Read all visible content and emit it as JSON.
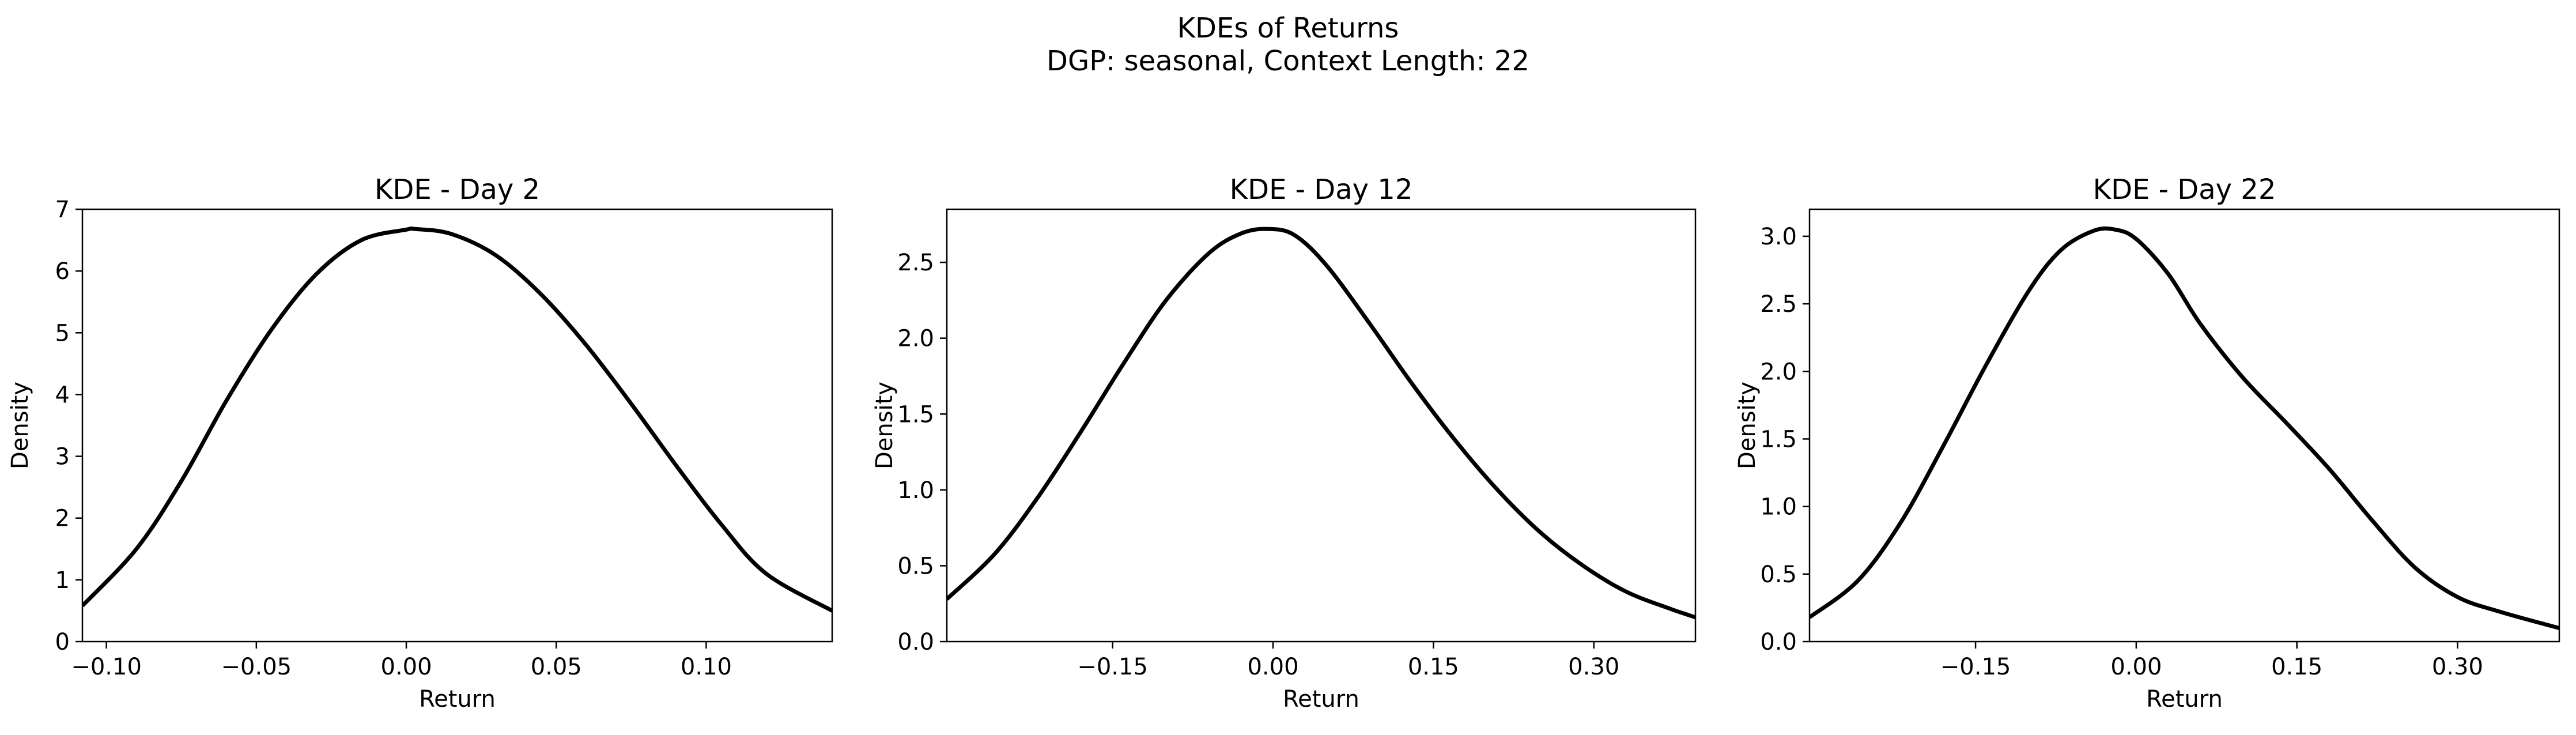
{
  "figure": {
    "title_line1": "KDEs of Returns",
    "title_line2": "DGP: seasonal, Context Length: 22"
  },
  "colors": {
    "line": "#000000",
    "axes": "#000000",
    "background": "#ffffff"
  },
  "chart_data": [
    {
      "type": "line",
      "title": "KDE - Day 2",
      "xlabel": "Return",
      "ylabel": "Density",
      "xlim": [
        -0.108,
        0.142
      ],
      "ylim": [
        0,
        7
      ],
      "xticks": [
        -0.1,
        -0.05,
        0.0,
        0.05,
        0.1
      ],
      "xtick_labels": [
        "−0.10",
        "−0.05",
        "0.00",
        "0.05",
        "0.10"
      ],
      "yticks": [
        0,
        1,
        2,
        3,
        4,
        5,
        6,
        7
      ],
      "ytick_labels": [
        "0",
        "1",
        "2",
        "3",
        "4",
        "5",
        "6",
        "7"
      ],
      "series": [
        {
          "name": "KDE - Day 2",
          "x": [
            -0.108,
            -0.09,
            -0.075,
            -0.06,
            -0.045,
            -0.03,
            -0.015,
            0.0,
            0.003,
            0.015,
            0.03,
            0.045,
            0.06,
            0.075,
            0.09,
            0.105,
            0.12,
            0.142
          ],
          "y": [
            0.58,
            1.5,
            2.6,
            3.9,
            5.05,
            5.95,
            6.5,
            6.67,
            6.68,
            6.6,
            6.25,
            5.62,
            4.8,
            3.85,
            2.85,
            1.9,
            1.1,
            0.5
          ]
        }
      ]
    },
    {
      "type": "line",
      "title": "KDE - Day 12",
      "xlabel": "Return",
      "ylabel": "Density",
      "xlim": [
        -0.305,
        0.395
      ],
      "ylim": [
        0,
        2.85
      ],
      "xticks": [
        -0.15,
        0.0,
        0.15,
        0.3
      ],
      "xtick_labels": [
        "−0.15",
        "0.00",
        "0.15",
        "0.30"
      ],
      "yticks": [
        0.0,
        0.5,
        1.0,
        1.5,
        2.0,
        2.5
      ],
      "ytick_labels": [
        "0.0",
        "0.5",
        "1.0",
        "1.5",
        "2.0",
        "2.5"
      ],
      "series": [
        {
          "name": "KDE - Day 12",
          "x": [
            -0.305,
            -0.26,
            -0.22,
            -0.18,
            -0.14,
            -0.1,
            -0.06,
            -0.03,
            -0.005,
            0.02,
            0.05,
            0.09,
            0.13,
            0.17,
            0.21,
            0.25,
            0.29,
            0.33,
            0.37,
            0.395
          ],
          "y": [
            0.28,
            0.58,
            0.95,
            1.38,
            1.83,
            2.25,
            2.56,
            2.69,
            2.72,
            2.68,
            2.48,
            2.1,
            1.7,
            1.33,
            1.0,
            0.72,
            0.5,
            0.33,
            0.22,
            0.16
          ]
        }
      ]
    },
    {
      "type": "line",
      "title": "KDE - Day 22",
      "xlabel": "Return",
      "ylabel": "Density",
      "xlim": [
        -0.305,
        0.395
      ],
      "ylim": [
        0,
        3.2
      ],
      "xticks": [
        -0.15,
        0.0,
        0.15,
        0.3
      ],
      "xtick_labels": [
        "−0.15",
        "0.00",
        "0.15",
        "0.30"
      ],
      "yticks": [
        0.0,
        0.5,
        1.0,
        1.5,
        2.0,
        2.5,
        3.0
      ],
      "ytick_labels": [
        "0.0",
        "0.5",
        "1.0",
        "1.5",
        "2.0",
        "2.5",
        "3.0"
      ],
      "series": [
        {
          "name": "KDE - Day 22",
          "x": [
            -0.305,
            -0.26,
            -0.22,
            -0.18,
            -0.14,
            -0.1,
            -0.07,
            -0.04,
            -0.02,
            0.0,
            0.03,
            0.06,
            0.1,
            0.14,
            0.18,
            0.22,
            0.26,
            0.3,
            0.34,
            0.395
          ],
          "y": [
            0.18,
            0.45,
            0.88,
            1.45,
            2.05,
            2.6,
            2.9,
            3.04,
            3.05,
            2.98,
            2.72,
            2.35,
            1.95,
            1.62,
            1.28,
            0.9,
            0.55,
            0.33,
            0.22,
            0.1
          ]
        }
      ]
    }
  ]
}
